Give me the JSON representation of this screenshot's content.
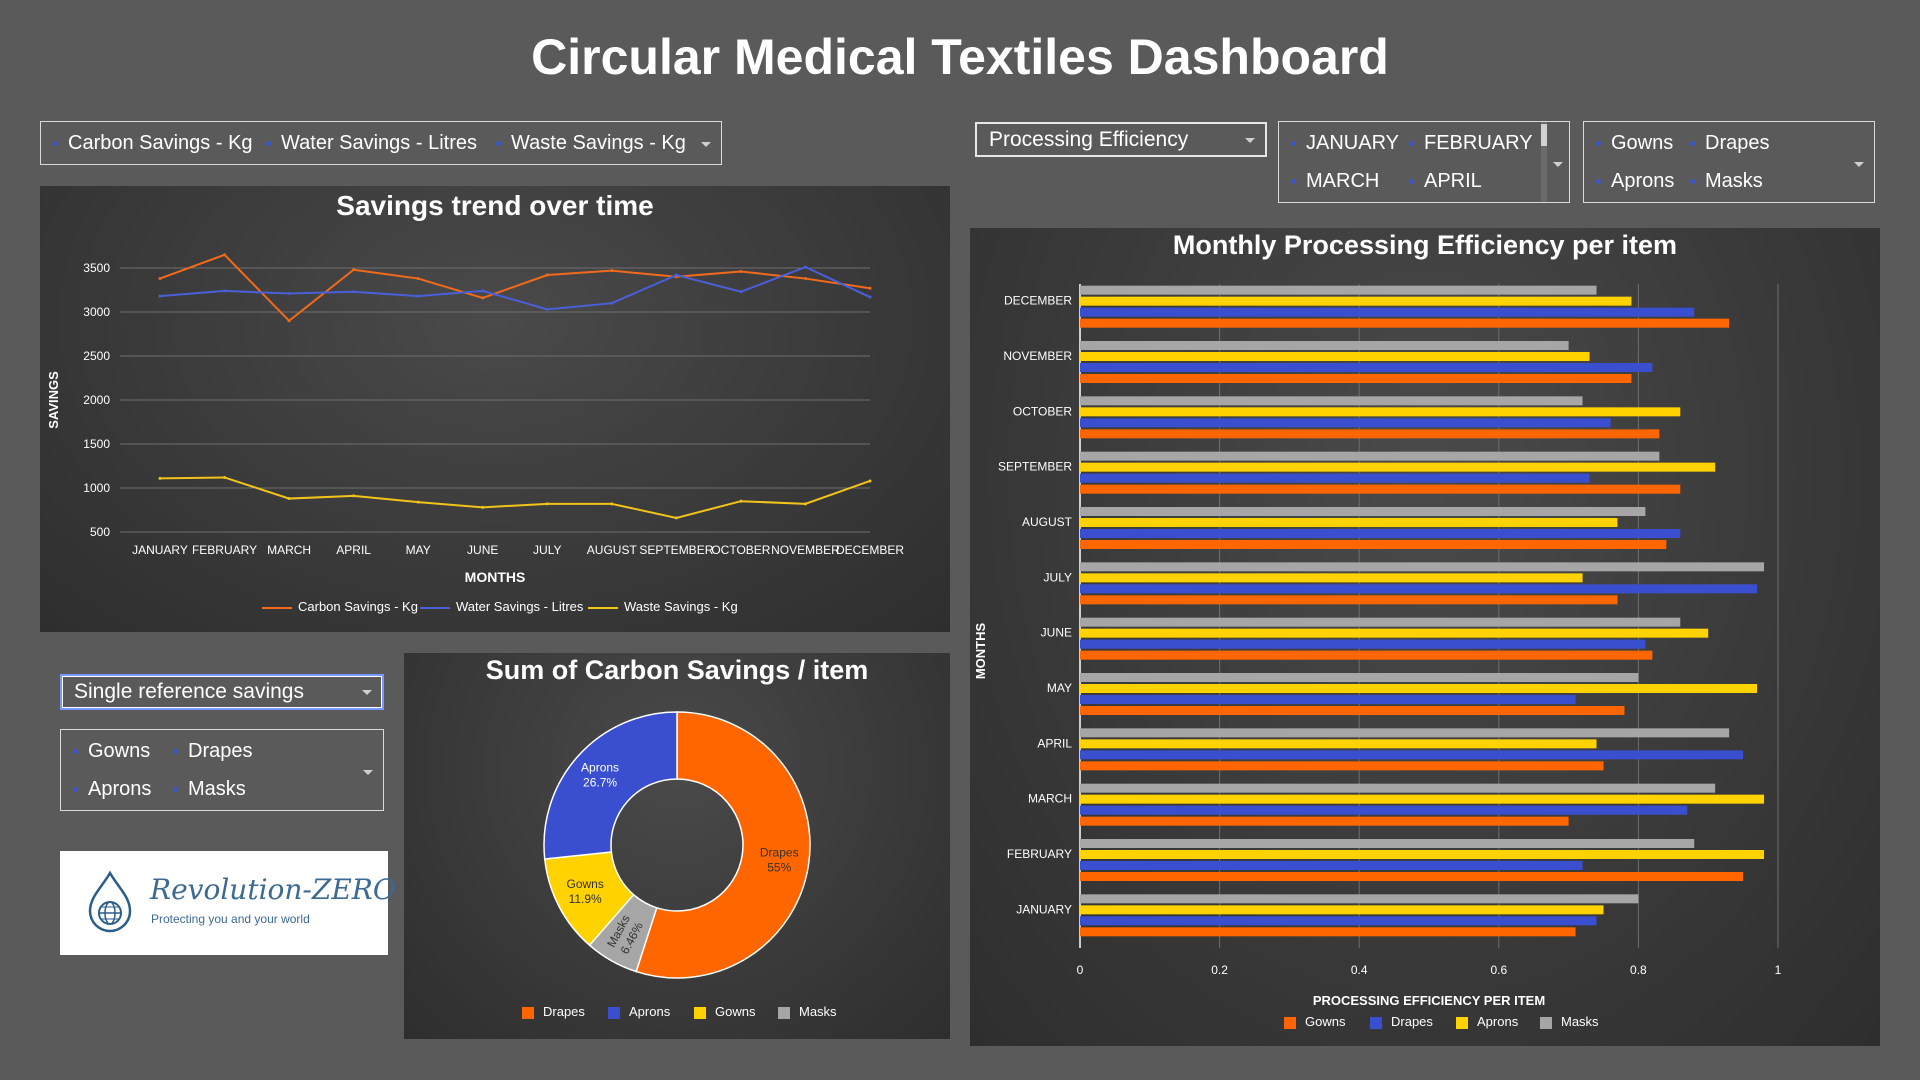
{
  "title": "Circular Medical Textiles Dashboard",
  "colors": {
    "gowns": "#ff6600",
    "drapes": "#3a4fd0",
    "aprons": "#ffd200",
    "masks": "#a6a6a6",
    "water": "#4a5fd8",
    "waste": "#f2c41a",
    "carbon": "#f26a1b"
  },
  "savings_filter": {
    "items": [
      "Carbon Savings - Kg",
      "Water Savings - Litres",
      "Waste Savings - Kg"
    ]
  },
  "efficiency_dropdown": {
    "value": "Processing Efficiency"
  },
  "month_filter": {
    "items": [
      "JANUARY",
      "FEBRUARY",
      "MARCH",
      "APRIL"
    ]
  },
  "item_filter_top": {
    "items": [
      "Gowns",
      "Drapes",
      "Aprons",
      "Masks"
    ]
  },
  "reference_dropdown": {
    "value": "Single reference savings"
  },
  "item_filter_bottom": {
    "items": [
      "Gowns",
      "Drapes",
      "Aprons",
      "Masks"
    ]
  },
  "logo": {
    "name": "Revolution-ZERO",
    "tagline": "Protecting you and your world",
    "icon": "globe-drop-icon"
  },
  "chart_data": [
    {
      "type": "line",
      "title": "Savings trend over time",
      "xlabel": "MONTHS",
      "ylabel": "SAVINGS",
      "ylim": [
        500,
        3500
      ],
      "yticks": [
        "500",
        "1000",
        "1500",
        "2000",
        "2500",
        "3000",
        "3500"
      ],
      "categories": [
        "JANUARY",
        "FEBRUARY",
        "MARCH",
        "APRIL",
        "MAY",
        "JUNE",
        "JULY",
        "AUGUST",
        "SEPTEMBER",
        "OCTOBER",
        "NOVEMBER",
        "DECEMBER"
      ],
      "legend_position": "bottom",
      "series": [
        {
          "name": "Carbon Savings - Kg",
          "color": "#f26a1b",
          "values": [
            3380,
            3650,
            2900,
            3480,
            3380,
            3160,
            3420,
            3470,
            3400,
            3460,
            3380,
            3270
          ]
        },
        {
          "name": "Water Savings - Litres",
          "color": "#4a5fd8",
          "values": [
            3180,
            3240,
            3210,
            3230,
            3180,
            3240,
            3030,
            3100,
            3420,
            3230,
            3510,
            3170
          ]
        },
        {
          "name": "Waste Savings - Kg",
          "color": "#f2c41a",
          "values": [
            1110,
            1120,
            880,
            910,
            840,
            780,
            820,
            820,
            660,
            850,
            820,
            1080
          ]
        }
      ]
    },
    {
      "type": "pie",
      "title": "Sum of Carbon Savings / item",
      "legend_position": "bottom",
      "slices": [
        {
          "name": "Drapes",
          "label": "Drapes\n55%",
          "value": 55,
          "color": "#ff6600"
        },
        {
          "name": "Masks",
          "label": "Masks\n6.46%",
          "value": 6.46,
          "color": "#a6a6a6"
        },
        {
          "name": "Gowns",
          "label": "Gowns\n11.9%",
          "value": 11.9,
          "color": "#ffd200"
        },
        {
          "name": "Aprons",
          "label": "Aprons\n26.7%",
          "value": 26.7,
          "color": "#3a4fd0"
        }
      ],
      "legend": [
        "Drapes",
        "Aprons",
        "Gowns",
        "Masks"
      ]
    },
    {
      "type": "bar",
      "orientation": "horizontal",
      "title": "Monthly Processing Efficiency per item",
      "xlabel": "PROCESSING EFFICIENCY PER ITEM",
      "ylabel": "MONTHS",
      "xlim": [
        0,
        1
      ],
      "xticks": [
        "0",
        "0.2",
        "0.4",
        "0.6",
        "0.8",
        "1"
      ],
      "categories": [
        "JANUARY",
        "FEBRUARY",
        "MARCH",
        "APRIL",
        "MAY",
        "JUNE",
        "JULY",
        "AUGUST",
        "SEPTEMBER",
        "OCTOBER",
        "NOVEMBER",
        "DECEMBER"
      ],
      "legend_position": "bottom",
      "series": [
        {
          "name": "Gowns",
          "color": "#ff6600",
          "values": [
            0.71,
            0.95,
            0.7,
            0.75,
            0.78,
            0.82,
            0.77,
            0.84,
            0.86,
            0.83,
            0.79,
            0.93
          ]
        },
        {
          "name": "Drapes",
          "color": "#3a4fd0",
          "values": [
            0.74,
            0.72,
            0.87,
            0.95,
            0.71,
            0.81,
            0.97,
            0.86,
            0.73,
            0.76,
            0.82,
            0.88
          ]
        },
        {
          "name": "Aprons",
          "color": "#ffd200",
          "values": [
            0.75,
            0.98,
            0.98,
            0.74,
            0.97,
            0.9,
            0.72,
            0.77,
            0.91,
            0.86,
            0.73,
            0.79
          ]
        },
        {
          "name": "Masks",
          "color": "#a6a6a6",
          "values": [
            0.8,
            0.88,
            0.91,
            0.93,
            0.8,
            0.86,
            0.98,
            0.81,
            0.83,
            0.72,
            0.7,
            0.74
          ]
        }
      ]
    }
  ]
}
